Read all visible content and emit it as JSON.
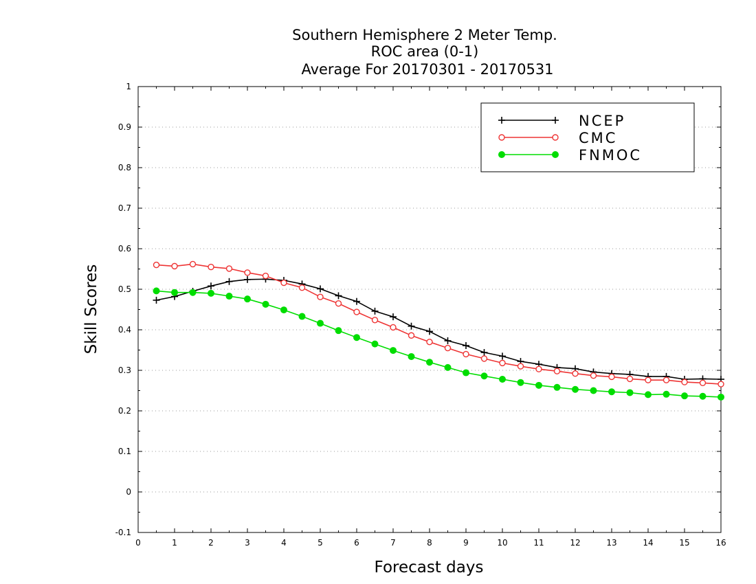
{
  "chart_data": {
    "type": "line",
    "title": [
      "Southern Hemisphere 2 Meter Temp.",
      "ROC area (0-1)",
      "Average For 20170301 - 20170531"
    ],
    "xlabel": "Forecast days",
    "ylabel": "Skill Scores",
    "xlim": [
      0,
      16
    ],
    "ylim": [
      -0.1,
      1
    ],
    "xticks": [
      0,
      1,
      2,
      3,
      4,
      5,
      6,
      7,
      8,
      9,
      10,
      11,
      12,
      13,
      14,
      15,
      16
    ],
    "xtick_labels": [
      "0",
      "1",
      "2",
      "3",
      "4",
      "5",
      "6",
      "7",
      "8",
      "9",
      "10",
      "11",
      "12",
      "13",
      "14",
      "15",
      "16"
    ],
    "yticks": [
      -0.1,
      0,
      0.1,
      0.2,
      0.3,
      0.4,
      0.5,
      0.6,
      0.7,
      0.8,
      0.9,
      1
    ],
    "ytick_labels": [
      "-0.1",
      "0",
      "0.1",
      "0.2",
      "0.3",
      "0.4",
      "0.5",
      "0.6",
      "0.7",
      "0.8",
      "0.9",
      "1"
    ],
    "grid": "horizontal dotted",
    "legend_position": "top-right",
    "x": [
      0.5,
      1,
      1.5,
      2,
      2.5,
      3,
      3.5,
      4,
      4.5,
      5,
      5.5,
      6,
      6.5,
      7,
      7.5,
      8,
      8.5,
      9,
      9.5,
      10,
      10.5,
      11,
      11.5,
      12,
      12.5,
      13,
      13.5,
      14,
      14.5,
      15,
      15.5,
      16
    ],
    "series": [
      {
        "name": "NCEP",
        "color": "#000000",
        "marker": "plus",
        "values": [
          0.473,
          0.482,
          0.495,
          0.508,
          0.519,
          0.524,
          0.525,
          0.522,
          0.513,
          0.501,
          0.484,
          0.47,
          0.446,
          0.432,
          0.409,
          0.396,
          0.373,
          0.361,
          0.344,
          0.335,
          0.322,
          0.315,
          0.307,
          0.304,
          0.296,
          0.292,
          0.29,
          0.285,
          0.285,
          0.278,
          0.279,
          0.278
        ]
      },
      {
        "name": "CMC",
        "color": "#ee3333",
        "marker": "open-circle",
        "values": [
          0.56,
          0.557,
          0.562,
          0.555,
          0.551,
          0.541,
          0.533,
          0.516,
          0.504,
          0.481,
          0.465,
          0.444,
          0.424,
          0.406,
          0.386,
          0.37,
          0.355,
          0.34,
          0.329,
          0.318,
          0.31,
          0.303,
          0.298,
          0.292,
          0.287,
          0.284,
          0.279,
          0.276,
          0.276,
          0.271,
          0.269,
          0.266
        ]
      },
      {
        "name": "FNMOC",
        "color": "#00dd00",
        "marker": "filled-circle",
        "values": [
          0.496,
          0.492,
          0.492,
          0.49,
          0.483,
          0.476,
          0.463,
          0.449,
          0.433,
          0.416,
          0.398,
          0.381,
          0.365,
          0.349,
          0.334,
          0.32,
          0.307,
          0.294,
          0.286,
          0.278,
          0.27,
          0.263,
          0.258,
          0.253,
          0.25,
          0.247,
          0.245,
          0.24,
          0.241,
          0.237,
          0.236,
          0.234
        ]
      }
    ]
  }
}
